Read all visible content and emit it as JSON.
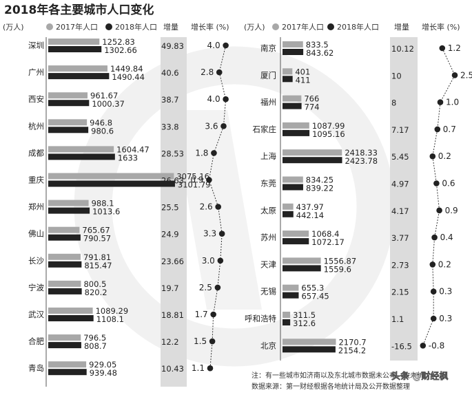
{
  "title": "2018年各主要城市人口变化",
  "header": {
    "unit": "(万人)",
    "legend_2017": "2017年人口",
    "legend_2018": "2018年人口",
    "increase": "增量",
    "growth_rate": "增长率 (%)"
  },
  "chart_data": [
    {
      "type": "bar",
      "panel": "left",
      "categories": [
        "深圳",
        "广州",
        "西安",
        "杭州",
        "成都",
        "重庆",
        "郑州",
        "佛山",
        "长沙",
        "宁波",
        "武汉",
        "合肥",
        "青岛"
      ],
      "series": [
        {
          "name": "2017年人口",
          "values": [
            1252.83,
            1449.84,
            961.67,
            946.8,
            1604.47,
            3075.16,
            988.1,
            765.67,
            791.81,
            800.5,
            1089.29,
            796.5,
            929.05
          ]
        },
        {
          "name": "2018年人口",
          "values": [
            1302.66,
            1490.44,
            1000.37,
            980.6,
            1633,
            3101.79,
            1013.6,
            790.57,
            815.47,
            820.2,
            1108.1,
            808.7,
            939.48
          ]
        }
      ],
      "increase": [
        49.83,
        40.6,
        38.7,
        33.8,
        28.53,
        26.63,
        25.5,
        24.9,
        23.66,
        19.7,
        18.81,
        12.2,
        10.43
      ],
      "growth_rate": [
        4.0,
        2.8,
        4.0,
        3.6,
        1.8,
        0.9,
        2.6,
        3.3,
        3.0,
        2.5,
        1.7,
        1.5,
        1.1
      ],
      "labels_2017": [
        "1252.83",
        "1449.84",
        "961.67",
        "946.8",
        "1604.47",
        "3075.16",
        "988.1",
        "765.67",
        "791.81",
        "800.5",
        "1089.29",
        "796.5",
        "929.05"
      ],
      "labels_2018": [
        "1302.66",
        "1490.44",
        "1000.37",
        "980.6",
        "1633",
        "3101.79",
        "1013.6",
        "790.57",
        "815.47",
        "820.2",
        "1108.1",
        "808.7",
        "939.48"
      ],
      "increase_labels": [
        "49.83",
        "40.6",
        "38.7",
        "33.8",
        "28.53",
        "26.63",
        "25.5",
        "24.9",
        "23.66",
        "19.7",
        "18.81",
        "12.2",
        "10.43"
      ],
      "rate_labels": [
        "4.0",
        "2.8",
        "4.0",
        "3.6",
        "1.8",
        "0.9",
        "2.6",
        "3.3",
        "3.0",
        "2.5",
        "1.7",
        "1.5",
        "1.1"
      ]
    },
    {
      "type": "bar",
      "panel": "right",
      "categories": [
        "南京",
        "厦门",
        "福州",
        "石家庄",
        "上海",
        "东莞",
        "太原",
        "苏州",
        "天津",
        "无锡",
        "呼和浩特",
        "北京"
      ],
      "series": [
        {
          "name": "2017年人口",
          "values": [
            833.5,
            401,
            766,
            1087.99,
            2418.33,
            834.25,
            437.97,
            1068.4,
            1556.87,
            655.3,
            311.5,
            2170.7
          ]
        },
        {
          "name": "2018年人口",
          "values": [
            843.62,
            411,
            774,
            1095.16,
            2423.78,
            839.22,
            442.14,
            1072.17,
            1559.6,
            657.45,
            312.6,
            2154.2
          ]
        }
      ],
      "increase": [
        10.12,
        10,
        8,
        7.17,
        5.45,
        4.97,
        4.17,
        3.77,
        2.73,
        2.15,
        1.1,
        -16.5
      ],
      "growth_rate": [
        1.2,
        2.5,
        1.0,
        0.7,
        0.2,
        0.6,
        0.9,
        0.4,
        0.2,
        0.3,
        0.3,
        -0.8
      ],
      "labels_2017": [
        "833.5",
        "401",
        "766",
        "1087.99",
        "2418.33",
        "834.25",
        "437.97",
        "1068.4",
        "1556.87",
        "655.3",
        "311.5",
        "2170.7"
      ],
      "labels_2018": [
        "843.62",
        "411",
        "774",
        "1095.16",
        "2423.78",
        "839.22",
        "442.14",
        "1072.17",
        "1559.6",
        "657.45",
        "312.6",
        "2154.2"
      ],
      "increase_labels": [
        "10.12",
        "10",
        "8",
        "7.17",
        "5.45",
        "4.97",
        "4.17",
        "3.77",
        "2.73",
        "2.15",
        "1.1",
        "-16.5"
      ],
      "rate_labels": [
        "1.2",
        "2.5",
        "1.0",
        "0.7",
        "0.2",
        "0.6",
        "0.9",
        "0.4",
        "0.2",
        "0.3",
        "0.3",
        "-0.8"
      ]
    }
  ],
  "notes": {
    "line1": "注：有一些城市如济南以及东北城市数据未公布，故未统计",
    "line2": "数据来源：第一财经根据各地统计局及公开数据整理"
  },
  "watermark": "头条 @财经枫",
  "colors": {
    "bar_2017": "#a8a8a8",
    "bar_2018": "#222222",
    "increase_bg": "#dcdcdc",
    "dot": "#222222",
    "background_logo": "#efefef"
  }
}
